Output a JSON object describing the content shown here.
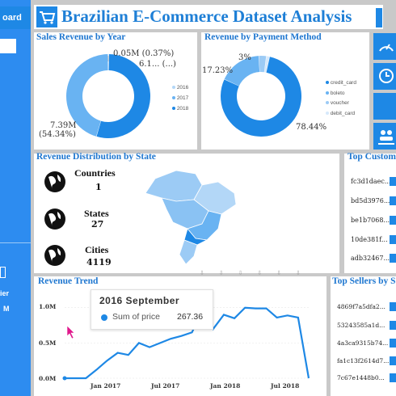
{
  "sidebar": {
    "title_fragment": "oard",
    "bottom_labels": [
      "ier",
      "M"
    ]
  },
  "header": {
    "title": "Brazilian E-Commerce Dataset Analysis"
  },
  "sales_by_year": {
    "title": "Sales Revenue by Year",
    "labels": {
      "top": "0.05M (0.37%)",
      "mid": "6.1... (...)",
      "big_value": "7.39M",
      "big_pct": "(54.34%)"
    },
    "legend": [
      "2016",
      "2017",
      "2018"
    ],
    "colors": [
      "#b3d7f7",
      "#69b3f2",
      "#1e88e5"
    ]
  },
  "payment_method": {
    "title": "Revenue by Payment Method",
    "labels": {
      "a": "3%",
      "b": "17.23%",
      "c": "78.44%"
    },
    "legend": [
      "credit_card",
      "boleto",
      "voucher",
      "debit_card"
    ],
    "colors": [
      "#1e88e5",
      "#69b3f2",
      "#9ccbf5",
      "#d6e9fb"
    ]
  },
  "state_dist": {
    "title": "Revenue Distribution by State",
    "stats": [
      {
        "label": "Countries",
        "value": "1"
      },
      {
        "label": "States",
        "value": "27"
      },
      {
        "label": "Cities",
        "value": "4119"
      }
    ]
  },
  "top_customers": {
    "title": "Top Custom",
    "ids": [
      "fc3d1daec...",
      "bd5d3976...",
      "be1b7068...",
      "10de381f...",
      "adb32467..."
    ]
  },
  "trend": {
    "title": "Revenue Trend",
    "tooltip_title": "2016 September",
    "tooltip_series": "Sum of price",
    "tooltip_value": "267.36",
    "y_ticks": [
      "1.0M",
      "0.5M",
      "0.0M"
    ],
    "x_ticks": [
      "Jan 2017",
      "Jul 2017",
      "Jan 2018",
      "Jul 2018"
    ]
  },
  "chart_data": {
    "type": "line",
    "x": [
      "2016-09",
      "2016-10",
      "2016-12",
      "2017-01",
      "2017-02",
      "2017-03",
      "2017-04",
      "2017-05",
      "2017-06",
      "2017-07",
      "2017-08",
      "2017-09",
      "2017-10",
      "2017-11",
      "2017-12",
      "2018-01",
      "2018-02",
      "2018-03",
      "2018-04",
      "2018-05",
      "2018-06",
      "2018-07",
      "2018-08",
      "2018-09"
    ],
    "values": [
      267.36,
      0,
      0,
      120000,
      250000,
      360000,
      330000,
      500000,
      440000,
      500000,
      560000,
      600000,
      650000,
      980000,
      700000,
      900000,
      850000,
      1000000,
      990000,
      990000,
      860000,
      890000,
      860000,
      0
    ],
    "ylim": [
      0,
      1100000
    ],
    "series_name": "Sum of price"
  },
  "top_sellers": {
    "title": "Top Sellers by S",
    "ids": [
      "4869f7a5dfa2...",
      "53243585a1d...",
      "4a3ca9315b74...",
      "fa1c13f2614d7...",
      "7c67e1448b0..."
    ]
  }
}
